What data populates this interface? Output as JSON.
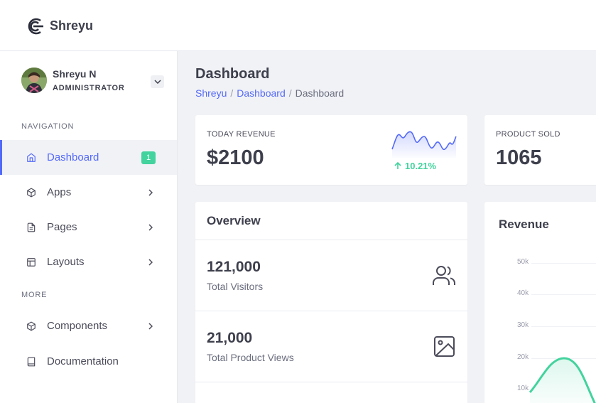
{
  "brand": {
    "name": "Shreyu"
  },
  "user": {
    "name": "Shreyu N",
    "role": "ADMINISTRATOR"
  },
  "sidebar": {
    "sections": [
      "NAVIGATION",
      "MORE"
    ],
    "items": [
      {
        "label": "Dashboard",
        "icon": "home-icon",
        "badge": "1",
        "active": true
      },
      {
        "label": "Apps",
        "icon": "package-icon"
      },
      {
        "label": "Pages",
        "icon": "file-text-icon"
      },
      {
        "label": "Layouts",
        "icon": "layout-icon"
      },
      {
        "label": "Components",
        "icon": "package-icon"
      },
      {
        "label": "Documentation",
        "icon": "book-icon"
      }
    ]
  },
  "page": {
    "title": "Dashboard",
    "breadcrumb": [
      "Shreyu",
      "Dashboard",
      "Dashboard"
    ]
  },
  "stats": [
    {
      "label": "TODAY REVENUE",
      "value": "$2100",
      "trend": "10.21%"
    },
    {
      "label": "PRODUCT SOLD",
      "value": "1065"
    }
  ],
  "overview": {
    "title": "Overview",
    "rows": [
      {
        "value": "121,000",
        "label": "Total Visitors",
        "icon": "users-icon"
      },
      {
        "value": "21,000",
        "label": "Total Product Views",
        "icon": "image-icon"
      }
    ]
  },
  "revenue": {
    "title": "Revenue",
    "yticks": [
      "50k",
      "40k",
      "30k",
      "20k",
      "10k"
    ]
  },
  "colors": {
    "accent": "#5369f8",
    "success": "#43d39e",
    "bg": "#f1f2f6"
  }
}
